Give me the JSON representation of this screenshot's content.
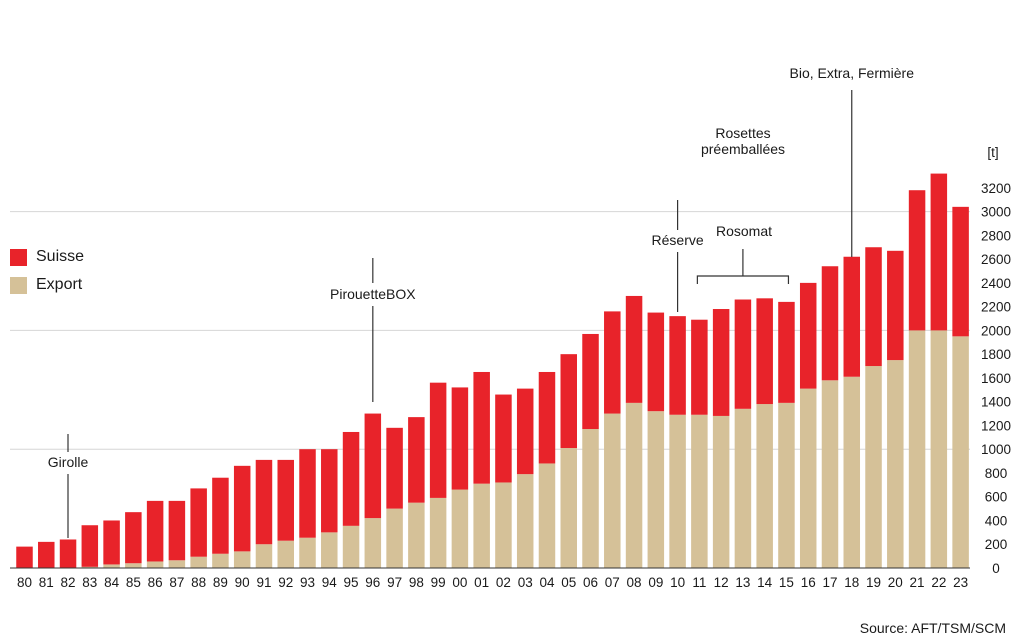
{
  "chart_data": {
    "type": "bar",
    "stacked": true,
    "categories": [
      "80",
      "81",
      "82",
      "83",
      "84",
      "85",
      "86",
      "87",
      "88",
      "89",
      "90",
      "91",
      "92",
      "93",
      "94",
      "95",
      "96",
      "97",
      "98",
      "99",
      "00",
      "01",
      "02",
      "03",
      "04",
      "05",
      "06",
      "07",
      "08",
      "09",
      "10",
      "11",
      "12",
      "13",
      "14",
      "15",
      "16",
      "17",
      "18",
      "19",
      "20",
      "21",
      "22",
      "23"
    ],
    "series": [
      {
        "name": "Export",
        "color": "#d5c198",
        "values": [
          0,
          0,
          0,
          10,
          30,
          40,
          55,
          65,
          95,
          120,
          140,
          200,
          230,
          255,
          300,
          355,
          420,
          500,
          550,
          590,
          660,
          710,
          720,
          790,
          880,
          1010,
          1170,
          1300,
          1390,
          1320,
          1290,
          1290,
          1280,
          1340,
          1380,
          1390,
          1510,
          1580,
          1610,
          1700,
          1750,
          2000,
          2000,
          1950
        ]
      },
      {
        "name": "Suisse",
        "color": "#e8232a",
        "values": [
          180,
          220,
          240,
          350,
          370,
          430,
          510,
          500,
          575,
          640,
          720,
          710,
          680,
          745,
          700,
          790,
          880,
          680,
          720,
          970,
          860,
          940,
          740,
          720,
          770,
          790,
          800,
          860,
          900,
          830,
          830,
          800,
          900,
          920,
          890,
          850,
          890,
          960,
          1010,
          1000,
          920,
          1180,
          1320,
          1090
        ]
      }
    ],
    "ylabel": "[t]",
    "ylim": [
      0,
      3200
    ],
    "yticks": [
      0,
      200,
      400,
      600,
      800,
      1000,
      1200,
      1400,
      1600,
      1800,
      2000,
      2200,
      2400,
      2600,
      2800,
      3000,
      3200
    ],
    "gridlines": [
      1000,
      2000,
      3000
    ],
    "legend_position": "left",
    "annotations": [
      {
        "label": "Girolle",
        "category": "82"
      },
      {
        "label": "PirouetteBOX",
        "category": "96"
      },
      {
        "label": "Réserve",
        "category": "10"
      },
      {
        "label": "Rosettes préemballées",
        "category": "13"
      },
      {
        "label": "Rosomat",
        "category_range": [
          "11",
          "15"
        ]
      },
      {
        "label": "Bio, Extra, Fermière",
        "category": "18"
      }
    ]
  },
  "legend": {
    "suisse": "Suisse",
    "export": "Export",
    "suisse_color": "#e8232a",
    "export_color": "#d5c198"
  },
  "source": "Source: AFT/TSM/SCM"
}
